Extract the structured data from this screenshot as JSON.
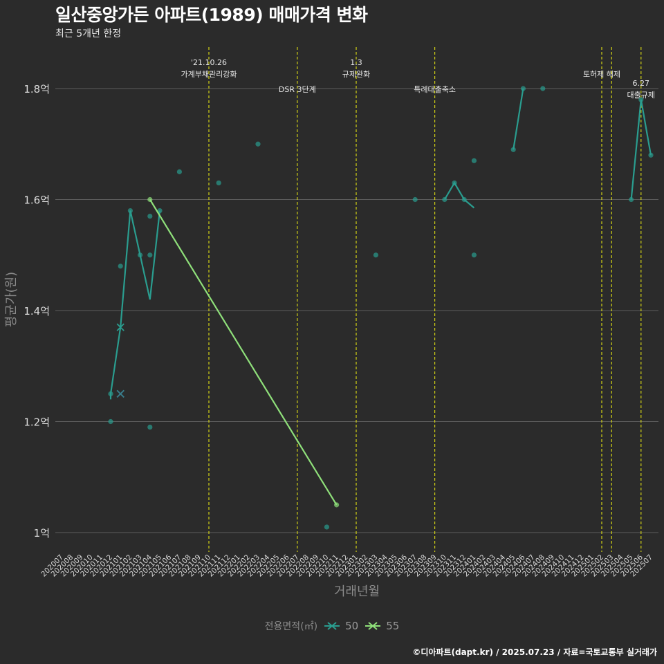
{
  "header": {
    "title": "일산중앙가든 아파트(1989) 매매가격 변화",
    "subtitle": "최근 5개년 한정"
  },
  "caption": "©디아파트(dapt.kr) / 2025.07.23 / 자료=국토교통부 실거래가",
  "legend": {
    "title": "전용면적(㎡)",
    "items": [
      {
        "label": "50",
        "color": "#2a9d8f"
      },
      {
        "label": "55",
        "color": "#8fe07a"
      }
    ]
  },
  "colors": {
    "series_50": "#2a9d8f",
    "series_55": "#8fe07a",
    "event_line": "#d4d414",
    "grid": "#5e5e5e",
    "axis_text": "#dddddd",
    "axis_title": "#8a8a8a"
  },
  "chart_data": {
    "type": "line",
    "title": "일산중앙가든 아파트(1989) 매매가격 변화",
    "xlabel": "거래년월",
    "ylabel": "평균가(원)",
    "ylim": [
      0.97,
      1.88
    ],
    "yticks": [
      {
        "value": 1.0,
        "label": "1억"
      },
      {
        "value": 1.2,
        "label": "1.2억"
      },
      {
        "value": 1.4,
        "label": "1.4억"
      },
      {
        "value": 1.6,
        "label": "1.6억"
      },
      {
        "value": 1.8,
        "label": "1.8억"
      }
    ],
    "x_categories": [
      "202007",
      "202008",
      "202009",
      "202010",
      "202011",
      "202012",
      "202101",
      "202102",
      "202103",
      "202104",
      "202105",
      "202106",
      "202107",
      "202108",
      "202109",
      "202110",
      "202111",
      "202112",
      "202201",
      "202202",
      "202203",
      "202204",
      "202205",
      "202206",
      "202207",
      "202208",
      "202209",
      "202210",
      "202211",
      "202212",
      "202301",
      "202302",
      "202303",
      "202304",
      "202305",
      "202306",
      "202307",
      "202308",
      "202309",
      "202310",
      "202311",
      "202312",
      "202401",
      "202402",
      "202403",
      "202404",
      "202405",
      "202406",
      "202407",
      "202408",
      "202409",
      "202410",
      "202411",
      "202412",
      "202501",
      "202502",
      "202503",
      "202504",
      "202505",
      "202506",
      "202507"
    ],
    "series": [
      {
        "name": "50",
        "line": [
          [
            "202012",
            1.24
          ],
          [
            "202012",
            1.25
          ],
          [
            "202101",
            1.37
          ],
          [
            "202102",
            1.58
          ],
          [
            "202103",
            1.5
          ],
          [
            "202104",
            1.42
          ],
          [
            "202105",
            1.58
          ]
        ],
        "line_segments": [
          [
            [
              "202012",
              1.24
            ],
            [
              "202012",
              1.25
            ],
            [
              "202101",
              1.37
            ],
            [
              "202102",
              1.58
            ],
            [
              "202103",
              1.5
            ],
            [
              "202104",
              1.42
            ],
            [
              "202105",
              1.58
            ]
          ],
          [
            [
              "202310",
              1.6
            ],
            [
              "202311",
              1.63
            ],
            [
              "202312",
              1.6
            ],
            [
              "202401",
              1.585
            ]
          ],
          [
            [
              "202405",
              1.69
            ],
            [
              "202406",
              1.8
            ]
          ],
          [
            [
              "202505",
              1.6
            ],
            [
              "202506",
              1.78
            ],
            [
              "202507",
              1.68
            ]
          ]
        ],
        "points": [
          [
            "202012",
            1.25
          ],
          [
            "202012",
            1.2
          ],
          [
            "202101",
            1.48
          ],
          [
            "202102",
            1.58
          ],
          [
            "202103",
            1.5
          ],
          [
            "202104",
            1.57
          ],
          [
            "202104",
            1.5
          ],
          [
            "202104",
            1.19
          ],
          [
            "202105",
            1.58
          ],
          [
            "202107",
            1.65
          ],
          [
            "202111",
            1.63
          ],
          [
            "202203",
            1.7
          ],
          [
            "202210",
            1.01
          ],
          [
            "202303",
            1.5
          ],
          [
            "202307",
            1.6
          ],
          [
            "202310",
            1.6
          ],
          [
            "202311",
            1.63
          ],
          [
            "202312",
            1.6
          ],
          [
            "202401",
            1.67
          ],
          [
            "202401",
            1.5
          ],
          [
            "202405",
            1.69
          ],
          [
            "202406",
            1.8
          ],
          [
            "202408",
            1.8
          ],
          [
            "202505",
            1.6
          ],
          [
            "202506",
            1.78
          ],
          [
            "202507",
            1.68
          ]
        ],
        "markers_x": [
          [
            "202101",
            1.37
          ],
          [
            "202101",
            1.25
          ]
        ]
      },
      {
        "name": "55",
        "line_segments": [
          [
            [
              "202104",
              1.6
            ],
            [
              "202211",
              1.05
            ]
          ]
        ],
        "points": [
          [
            "202104",
            1.6
          ],
          [
            "202211",
            1.05
          ]
        ],
        "markers_x": [
          [
            "202101",
            1.25
          ]
        ]
      }
    ],
    "events": [
      {
        "x": "202110",
        "lines": [
          "'21.10.26",
          "가계부채관리강화"
        ],
        "level": 0
      },
      {
        "x": "202207",
        "lines": [
          "DSR 3단계"
        ],
        "level": 2
      },
      {
        "x": "202301",
        "lines": [
          "1.3",
          "규제완화"
        ],
        "level": 0
      },
      {
        "x": "202309",
        "lines": [
          "특례대출축소"
        ],
        "level": 2
      },
      {
        "x": "202502",
        "lines": [
          "토허제 해제"
        ],
        "level": 1
      },
      {
        "x": "202503",
        "lines": [],
        "level": 1
      },
      {
        "x": "202506",
        "lines": [
          "6.27",
          "대출규제"
        ],
        "level": 3
      }
    ]
  }
}
